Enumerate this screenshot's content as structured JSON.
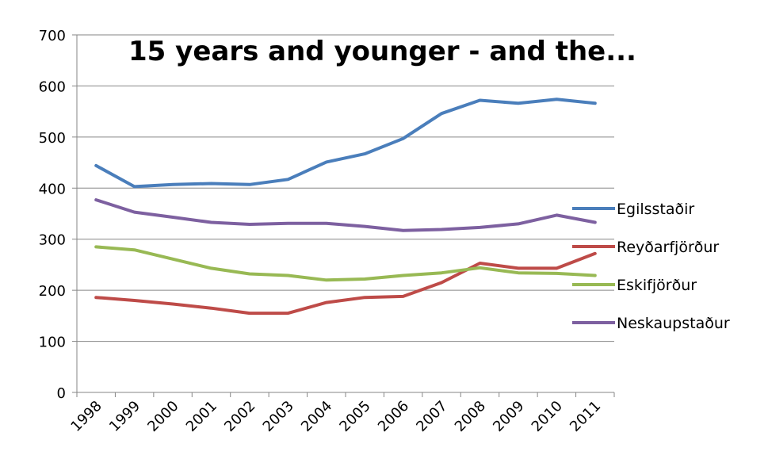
{
  "chart_data": {
    "type": "line",
    "title": "15 years and younger  - and the...",
    "categories": [
      "1998",
      "1999",
      "2000",
      "2001",
      "2002",
      "2003",
      "2004",
      "2005",
      "2006",
      "2007",
      "2008",
      "2009",
      "2010",
      "2011"
    ],
    "ylim": [
      0,
      700
    ],
    "yticks": [
      0,
      100,
      200,
      300,
      400,
      500,
      600,
      700
    ],
    "grid": true,
    "legend_position": "right",
    "series": [
      {
        "name": "Egilsstaðir",
        "color": "#4a7ebb",
        "values": [
          444,
          403,
          407,
          409,
          407,
          417,
          451,
          467,
          497,
          546,
          572,
          566,
          574,
          566
        ]
      },
      {
        "name": "Reyðarfjörður",
        "color": "#be4b48",
        "values": [
          186,
          180,
          173,
          165,
          155,
          155,
          176,
          186,
          188,
          215,
          253,
          243,
          243,
          272
        ]
      },
      {
        "name": "Eskifjörður",
        "color": "#98b954",
        "values": [
          285,
          279,
          261,
          243,
          232,
          229,
          220,
          222,
          229,
          234,
          244,
          234,
          233,
          229
        ]
      },
      {
        "name": "Neskaupstaður",
        "color": "#7d60a0",
        "values": [
          377,
          353,
          343,
          333,
          329,
          331,
          331,
          325,
          317,
          319,
          323,
          330,
          347,
          333
        ]
      }
    ]
  }
}
